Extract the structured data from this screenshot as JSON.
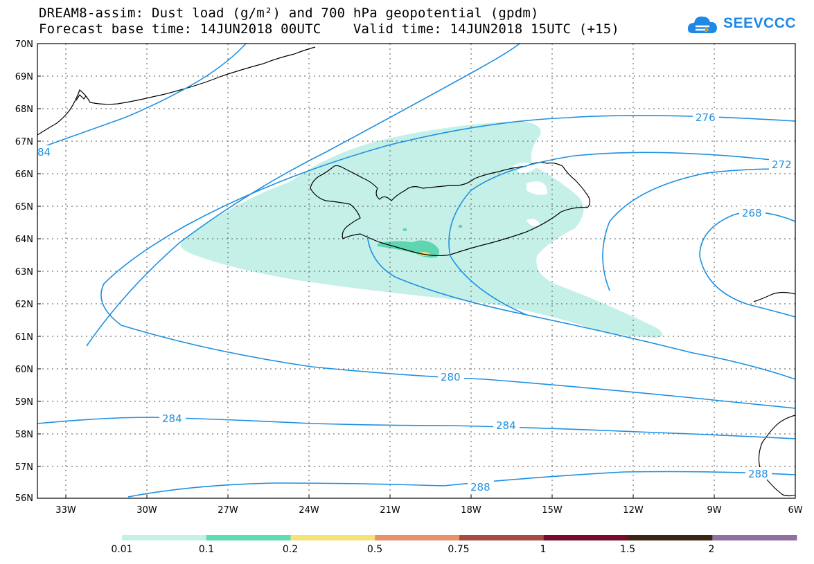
{
  "title": {
    "line1": "DREAM8-assim: Dust load (g/m²) and 700 hPa geopotential (gpdm)",
    "line2": "Forecast base time: 14JUN2018 00UTC    Valid time: 14JUN2018 15UTC (+15)"
  },
  "logo": {
    "text": "SEEVCCC",
    "icon": "cloud-icon",
    "color": "#1e88e5"
  },
  "axes": {
    "lat_labels": [
      "70N",
      "69N",
      "68N",
      "67N",
      "66N",
      "65N",
      "64N",
      "63N",
      "62N",
      "61N",
      "60N",
      "59N",
      "58N",
      "57N",
      "56N"
    ],
    "lon_labels": [
      "33W",
      "30W",
      "27W",
      "24W",
      "21W",
      "18W",
      "15W",
      "12W",
      "9W",
      "6W"
    ]
  },
  "contours": {
    "color": "#1e90e0",
    "labels": [
      "276",
      "272",
      "268",
      "280",
      "284",
      "284",
      "288",
      "288",
      "84"
    ]
  },
  "dust": {
    "light_color": "#c4f0e8",
    "mid_color": "#5fd6b0",
    "high_color": "#f5e070"
  },
  "colorbar": {
    "colors": [
      "#c4f0e8",
      "#5fdcb4",
      "#f5e27a",
      "#e8906a",
      "#a84a40",
      "#780a2a",
      "#3a2412",
      "#9070a0"
    ],
    "labels": [
      "0.01",
      "0.1",
      "0.2",
      "0.5",
      "0.75",
      "1",
      "1.5",
      "2"
    ]
  }
}
